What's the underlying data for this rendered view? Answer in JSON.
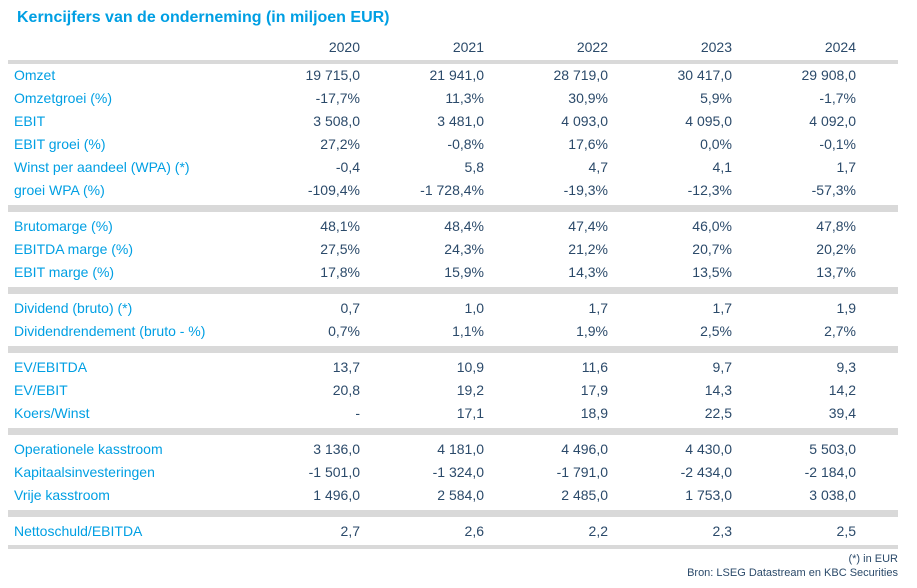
{
  "title": "Kerncijfers van de onderneming (in miljoen EUR)",
  "colors": {
    "accent": "#009fe3",
    "value_text": "#2b4a6a",
    "separator_band": "#d9d9d9"
  },
  "footer": {
    "note": "(*) in EUR",
    "source": "Bron: LSEG Datastream en KBC Securities"
  },
  "chart_data": {
    "type": "table",
    "title": "Kerncijfers van de onderneming (in miljoen EUR)",
    "columns": [
      "2020",
      "2021",
      "2022",
      "2023",
      "2024"
    ],
    "sections": [
      {
        "rows": [
          {
            "label": "Omzet",
            "values": [
              "19 715,0",
              "21 941,0",
              "28 719,0",
              "30 417,0",
              "29 908,0"
            ]
          },
          {
            "label": "Omzetgroei (%)",
            "values": [
              "-17,7%",
              "11,3%",
              "30,9%",
              "5,9%",
              "-1,7%"
            ]
          },
          {
            "label": "EBIT",
            "values": [
              "3 508,0",
              "3 481,0",
              "4 093,0",
              "4 095,0",
              "4 092,0"
            ]
          },
          {
            "label": "EBIT groei (%)",
            "values": [
              "27,2%",
              "-0,8%",
              "17,6%",
              "0,0%",
              "-0,1%"
            ]
          },
          {
            "label": "Winst per aandeel (WPA) (*)",
            "values": [
              "-0,4",
              "5,8",
              "4,7",
              "4,1",
              "1,7"
            ]
          },
          {
            "label": "groei WPA (%)",
            "values": [
              "-109,4%",
              "-1 728,4%",
              "-19,3%",
              "-12,3%",
              "-57,3%"
            ]
          }
        ]
      },
      {
        "rows": [
          {
            "label": "Brutomarge (%)",
            "values": [
              "48,1%",
              "48,4%",
              "47,4%",
              "46,0%",
              "47,8%"
            ]
          },
          {
            "label": "EBITDA marge (%)",
            "values": [
              "27,5%",
              "24,3%",
              "21,2%",
              "20,7%",
              "20,2%"
            ]
          },
          {
            "label": "EBIT marge (%)",
            "values": [
              "17,8%",
              "15,9%",
              "14,3%",
              "13,5%",
              "13,7%"
            ]
          }
        ]
      },
      {
        "rows": [
          {
            "label": "Dividend (bruto) (*)",
            "values": [
              "0,7",
              "1,0",
              "1,7",
              "1,7",
              "1,9"
            ]
          },
          {
            "label": "Dividendrendement (bruto - %)",
            "values": [
              "0,7%",
              "1,1%",
              "1,9%",
              "2,5%",
              "2,7%"
            ]
          }
        ]
      },
      {
        "rows": [
          {
            "label": "EV/EBITDA",
            "values": [
              "13,7",
              "10,9",
              "11,6",
              "9,7",
              "9,3"
            ]
          },
          {
            "label": "EV/EBIT",
            "values": [
              "20,8",
              "19,2",
              "17,9",
              "14,3",
              "14,2"
            ]
          },
          {
            "label": "Koers/Winst",
            "values": [
              "-",
              "17,1",
              "18,9",
              "22,5",
              "39,4"
            ]
          }
        ]
      },
      {
        "rows": [
          {
            "label": "Operationele kasstroom",
            "values": [
              "3 136,0",
              "4 181,0",
              "4 496,0",
              "4 430,0",
              "5 503,0"
            ]
          },
          {
            "label": "Kapitaalsinvesteringen",
            "values": [
              "-1 501,0",
              "-1 324,0",
              "-1 791,0",
              "-2 434,0",
              "-2 184,0"
            ]
          },
          {
            "label": "Vrije kasstroom",
            "values": [
              "1 496,0",
              "2 584,0",
              "2 485,0",
              "1 753,0",
              "3 038,0"
            ]
          }
        ]
      },
      {
        "rows": [
          {
            "label": "Nettoschuld/EBITDA",
            "values": [
              "2,7",
              "2,6",
              "2,2",
              "2,3",
              "2,5"
            ]
          }
        ]
      }
    ]
  }
}
